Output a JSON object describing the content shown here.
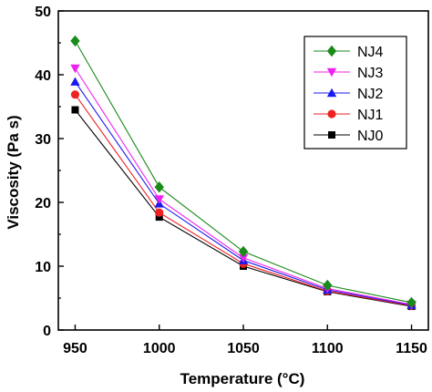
{
  "chart_data": {
    "type": "line",
    "title": "",
    "xlabel": "Temperature (°C)",
    "ylabel": "Viscosity (Pa s)",
    "xlim": [
      940,
      1160
    ],
    "ylim": [
      0,
      50
    ],
    "xticks": [
      950,
      1000,
      1050,
      1100,
      1150
    ],
    "yticks": [
      0,
      10,
      20,
      30,
      40,
      50
    ],
    "grid": false,
    "legend_position": "top-right",
    "x": [
      950,
      1000,
      1050,
      1100,
      1150
    ],
    "series": [
      {
        "name": "NJ4",
        "color": "#1a8a1a",
        "marker": "diamond",
        "values": [
          45.3,
          22.4,
          12.3,
          7.0,
          4.3
        ]
      },
      {
        "name": "NJ3",
        "color": "#ee22ee",
        "marker": "triangle-down",
        "values": [
          41.0,
          20.5,
          11.3,
          6.5,
          4.0
        ]
      },
      {
        "name": "NJ2",
        "color": "#1a1aee",
        "marker": "triangle-up",
        "values": [
          38.9,
          19.8,
          10.9,
          6.3,
          3.9
        ]
      },
      {
        "name": "NJ1",
        "color": "#ee2222",
        "marker": "circle",
        "values": [
          36.9,
          18.4,
          10.4,
          6.1,
          3.8
        ]
      },
      {
        "name": "NJ0",
        "color": "#000000",
        "marker": "square",
        "values": [
          34.5,
          17.7,
          10.0,
          6.0,
          3.7
        ]
      }
    ]
  }
}
